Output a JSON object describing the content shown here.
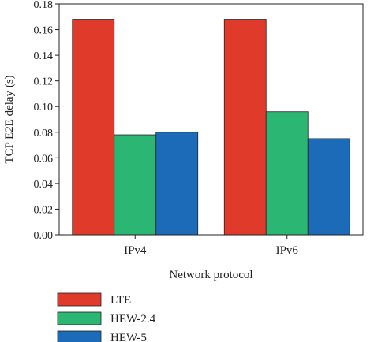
{
  "chart_data": {
    "type": "bar",
    "title": "",
    "xlabel": "Network protocol",
    "ylabel": "TCP E2E delay (s)",
    "categories": [
      "IPv4",
      "IPv6"
    ],
    "ylim": [
      0,
      0.18
    ],
    "yticks": [
      "0.00",
      "0.02",
      "0.04",
      "0.06",
      "0.08",
      "0.10",
      "0.12",
      "0.14",
      "0.16",
      "0.18"
    ],
    "grid": false,
    "legend_position": "bottom-left",
    "series": [
      {
        "name": "LTE",
        "color": "#e03a2b",
        "values": [
          0.168,
          0.168
        ]
      },
      {
        "name": "HEW-2.4",
        "color": "#2bb673",
        "values": [
          0.078,
          0.096
        ]
      },
      {
        "name": "HEW-5",
        "color": "#1c6bb8",
        "values": [
          0.08,
          0.075
        ]
      }
    ]
  }
}
